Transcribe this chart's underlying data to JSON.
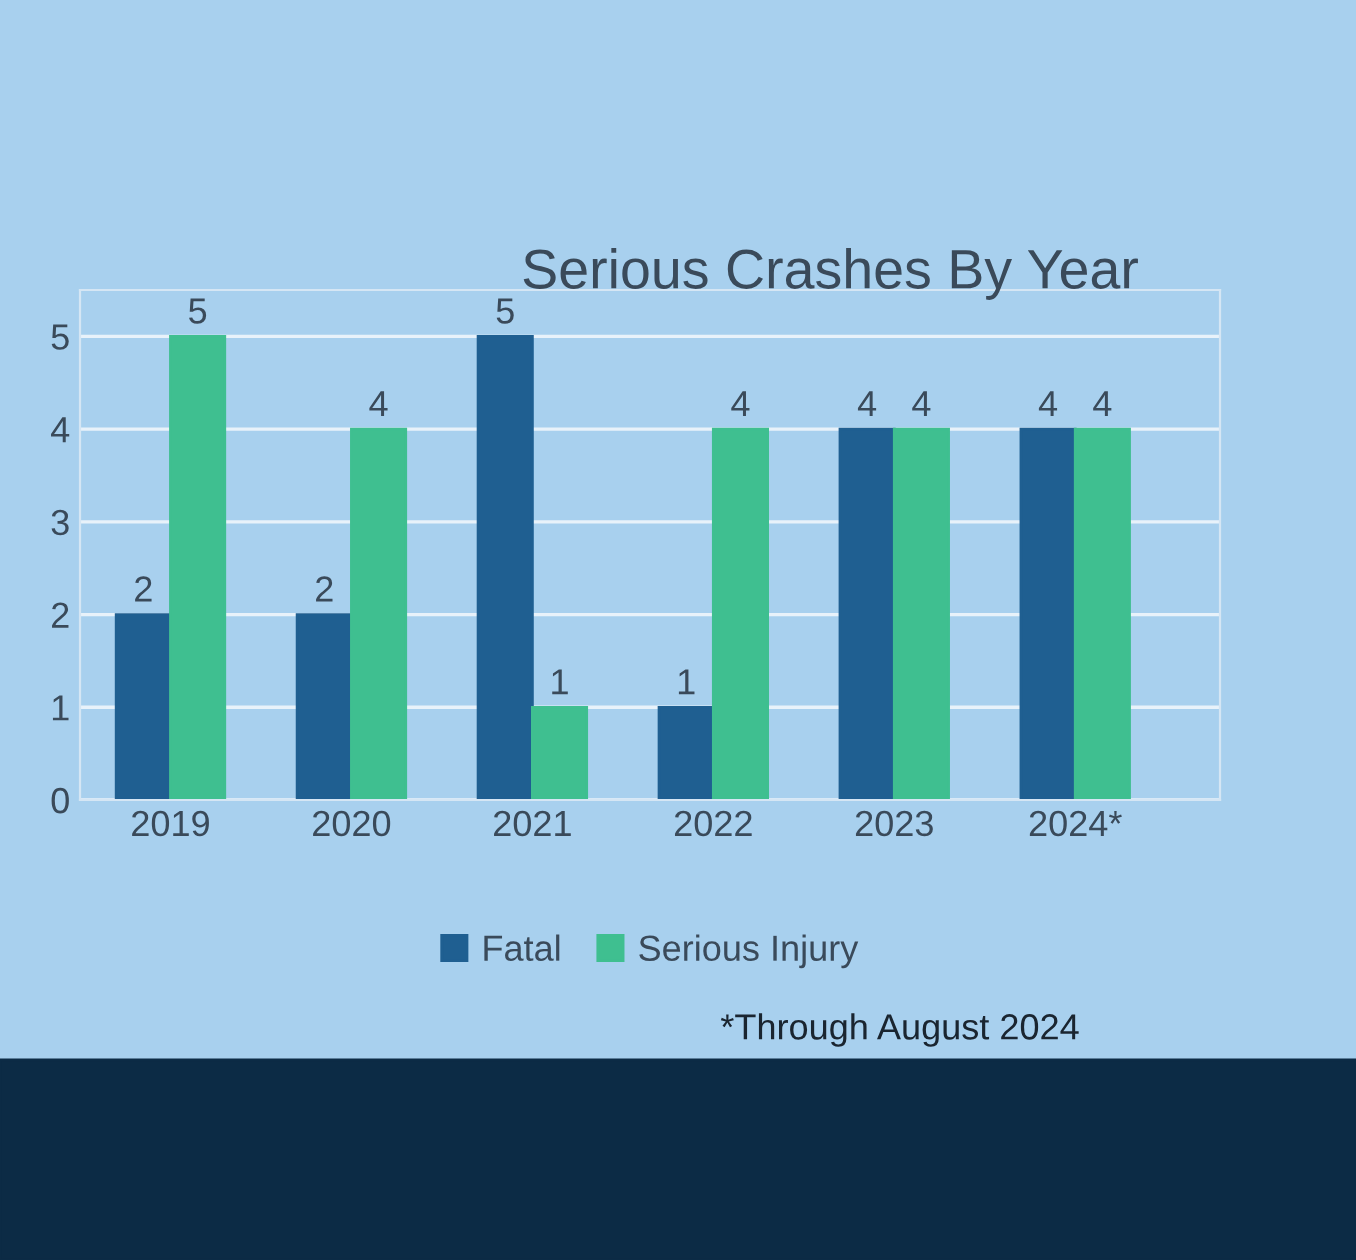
{
  "chart_data": {
    "type": "bar",
    "title": "Serious Crashes By Year",
    "categories": [
      "2019",
      "2020",
      "2021",
      "2022",
      "2023",
      "2024*"
    ],
    "series": [
      {
        "name": "Fatal",
        "color": "#1f5f91",
        "values": [
          2,
          2,
          5,
          1,
          4,
          4
        ]
      },
      {
        "name": "Serious Injury",
        "color": "#3fbf90",
        "values": [
          5,
          4,
          1,
          4,
          4,
          4
        ]
      }
    ],
    "ylim": [
      0,
      5.5
    ],
    "yticks": [
      0,
      1,
      2,
      3,
      4,
      5
    ],
    "grid": "y",
    "legend": "bottom",
    "data_labels": true,
    "annotations": [
      "*Through August 2024"
    ]
  }
}
